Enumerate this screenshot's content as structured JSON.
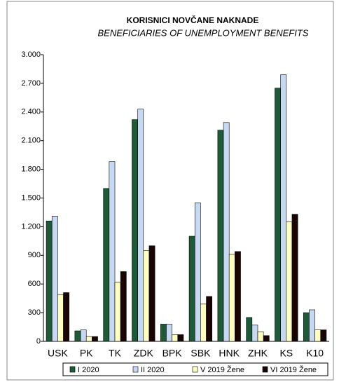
{
  "chart_data": {
    "type": "bar",
    "title": "KORISNICI NOVČANE NAKNADE",
    "subtitle": "BENEFICIARIES OF UNEMPLOYMENT BENEFITS",
    "categories": [
      "USK",
      "PK",
      "TK",
      "ZDK",
      "BPK",
      "SBK",
      "HNK",
      "ZHK",
      "KS",
      "K10"
    ],
    "series": [
      {
        "name": "I 2020",
        "color": "#1f5a38",
        "values": [
          1260,
          110,
          1600,
          2320,
          180,
          1100,
          2210,
          250,
          2650,
          300
        ]
      },
      {
        "name": "II 2020",
        "color": "#c6d9f1",
        "values": [
          1310,
          120,
          1880,
          2430,
          180,
          1450,
          2290,
          170,
          2790,
          330
        ]
      },
      {
        "name": "V 2019 Žene",
        "color": "#ffffc4",
        "values": [
          490,
          50,
          620,
          950,
          70,
          390,
          910,
          100,
          1250,
          120
        ]
      },
      {
        "name": "VI 2019 Žene",
        "color": "#1a0505",
        "values": [
          510,
          50,
          730,
          1000,
          70,
          470,
          940,
          60,
          1330,
          120
        ]
      }
    ],
    "ylim": [
      0,
      3000
    ],
    "yticks": [
      0,
      300,
      600,
      900,
      {
        "value": 1200,
        "label": "1.200"
      },
      {
        "value": 1500,
        "label": "1.500"
      },
      {
        "value": 1800,
        "label": "1.800"
      },
      {
        "value": 2100,
        "label": "2.100"
      },
      {
        "value": 2400,
        "label": "2.400"
      },
      {
        "value": 2700,
        "label": "2.700"
      },
      {
        "value": 3000,
        "label": "3.000"
      }
    ],
    "grid": false
  }
}
